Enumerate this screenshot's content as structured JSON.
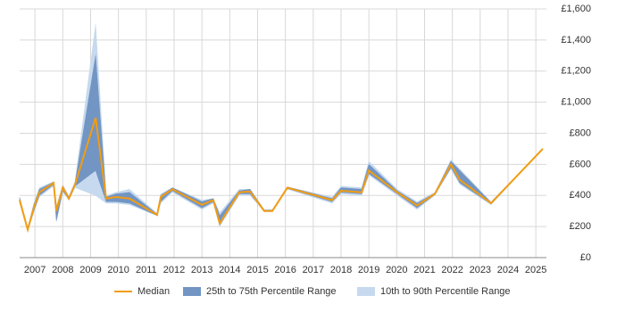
{
  "chart_data": {
    "type": "line",
    "x": [
      2006.45,
      2006.74,
      2006.96,
      2007.16,
      2007.67,
      2007.77,
      2008.0,
      2008.22,
      2008.44,
      2009.18,
      2009.56,
      2009.91,
      2010.4,
      2011.39,
      2011.52,
      2011.94,
      2013.0,
      2013.41,
      2013.64,
      2014.34,
      2014.73,
      2015.24,
      2015.53,
      2016.07,
      2017.68,
      2018.0,
      2018.74,
      2019.0,
      2020.02,
      2020.73,
      2021.37,
      2021.95,
      2022.27,
      2023.39,
      2025.25
    ],
    "series": [
      {
        "name": "10th to 90th Percentile Range",
        "color": "#c6d9ee",
        "low": [
          350,
          170,
          290,
          390,
          460,
          230,
          420,
          370,
          450,
          400,
          350,
          350,
          340,
          270,
          350,
          420,
          310,
          350,
          200,
          400,
          400,
          295,
          295,
          440,
          350,
          410,
          400,
          530,
          400,
          310,
          400,
          570,
          470,
          340,
          700
        ],
        "high": [
          390,
          195,
          350,
          450,
          490,
          330,
          470,
          395,
          490,
          1500,
          400,
          420,
          440,
          285,
          410,
          450,
          370,
          380,
          290,
          440,
          440,
          310,
          310,
          455,
          390,
          460,
          450,
          620,
          440,
          360,
          420,
          630,
          570,
          360,
          700
        ]
      },
      {
        "name": "25th to 75th Percentile Range",
        "color": "#7295c3",
        "low": [
          360,
          175,
          300,
          400,
          470,
          240,
          430,
          375,
          460,
          560,
          360,
          360,
          350,
          270,
          360,
          430,
          320,
          360,
          210,
          410,
          410,
          300,
          300,
          445,
          360,
          420,
          410,
          540,
          410,
          320,
          405,
          580,
          480,
          345,
          700
        ],
        "high": [
          385,
          190,
          340,
          440,
          485,
          320,
          460,
          390,
          480,
          1300,
          390,
          410,
          420,
          280,
          400,
          450,
          360,
          380,
          270,
          430,
          440,
          305,
          305,
          455,
          380,
          450,
          440,
          600,
          430,
          350,
          415,
          620,
          560,
          355,
          700
        ]
      },
      {
        "name": "Median",
        "color": "#f39c12",
        "values": [
          370,
          180,
          320,
          420,
          480,
          300,
          450,
          380,
          470,
          900,
          380,
          390,
          380,
          275,
          390,
          440,
          340,
          370,
          220,
          420,
          425,
          300,
          300,
          450,
          370,
          430,
          420,
          560,
          420,
          335,
          410,
          600,
          500,
          350,
          700
        ]
      }
    ],
    "xlim": [
      2006.45,
      2025.38
    ],
    "xticks": [
      2007,
      2008,
      2009,
      2010,
      2011,
      2012,
      2013,
      2014,
      2015,
      2016,
      2017,
      2018,
      2019,
      2020,
      2021,
      2022,
      2023,
      2024,
      2025
    ],
    "ylim": [
      0,
      1600
    ],
    "yticks": [
      {
        "value": 0,
        "label": "£0"
      },
      {
        "value": 200,
        "label": "£200"
      },
      {
        "value": 400,
        "label": "£400"
      },
      {
        "value": 600,
        "label": "£600"
      },
      {
        "value": 800,
        "label": "£800"
      },
      {
        "value": 1000,
        "label": "£1,000"
      },
      {
        "value": 1200,
        "label": "£1,200"
      },
      {
        "value": 1400,
        "label": "£1,400"
      },
      {
        "value": 1600,
        "label": "£1,600"
      }
    ],
    "grid": true,
    "legend": "bottom"
  }
}
